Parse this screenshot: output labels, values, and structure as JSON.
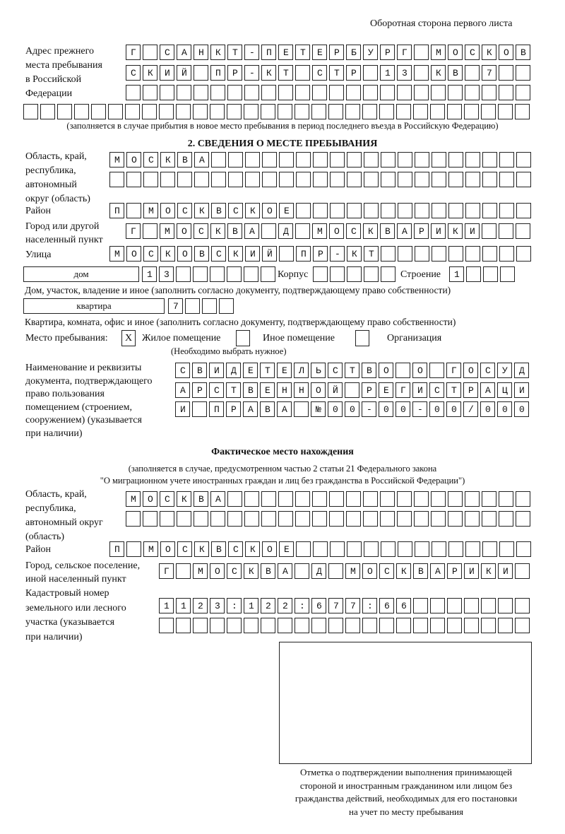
{
  "header": {
    "side_note": "Оборотная сторона первого листа"
  },
  "prev_address": {
    "label": [
      "Адрес прежнего",
      "места пребывания",
      "в Российской",
      "Федерации"
    ],
    "rows": [
      "Г САНКТ-ПЕТЕРБУРГ МОСКОВ",
      "СКИЙ ПР-КТ СТР 13 КВ 7",
      "",
      ""
    ],
    "note": "(заполняется в случае прибытия в новое место пребывания в период последнего въезда в Российскую Федерацию)"
  },
  "section2": {
    "title": "2. СВЕДЕНИЯ О МЕСТЕ ПРЕБЫВАНИЯ",
    "region_label": [
      "Область, край,",
      "республика,",
      "автономный",
      "округ (область)"
    ],
    "region_rows": [
      "МОСКВА",
      ""
    ],
    "district_label": "Район",
    "district": "П МОСКВСКОЕ",
    "city_label": [
      "Город или другой",
      "населенный пункт"
    ],
    "city": "Г МОСКВА Д МОСКВАРИКИ",
    "street_label": "Улица",
    "street": "МОСКОВСКИЙ ПР-КТ",
    "house_type": "дом",
    "house": "13",
    "korpus_label": "Корпус",
    "korpus": "",
    "building_label": "Строение",
    "building": "1",
    "house_note": "Дом, участок, владение и иное (заполнить согласно документу, подтверждающему право собственности)",
    "flat_type": "квартира",
    "flat": "7",
    "flat_note": "Квартира, комната, офис и иное (заполнить согласно документу, подтверждающему право собственности)",
    "stay_label": "Место пребывания:",
    "stay_options": [
      {
        "label": "Жилое помещение",
        "mark": "Х",
        "checked": true
      },
      {
        "label": "Иное помещение",
        "mark": "",
        "checked": false
      },
      {
        "label": "Организация",
        "mark": "",
        "checked": false
      }
    ],
    "stay_note": "(Необходимо выбрать нужное)",
    "doc_label": [
      "Наименование и реквизиты",
      "документа, подтверждающего",
      "право пользования",
      "помещением (строением,",
      "сооружением) (указывается",
      "при наличии)"
    ],
    "doc_rows": [
      "СВИДЕТЕЛЬСТВО О ГОСУД",
      "АРСТВЕННОЙ РЕГИСТРАЦИ",
      "И ПРАВА №00-00-00/000"
    ]
  },
  "actual": {
    "title": "Фактическое место нахождения",
    "note1": "(заполняется в случае, предусмотренном частью 2 статьи 21 Федерального закона",
    "note2": "\"О миграционном учете иностранных граждан и лиц без гражданства в Российской Федерации\")",
    "region_label": [
      "Область, край,",
      "республика,",
      "автономный округ",
      "(область)"
    ],
    "region_rows": [
      "МОСКВА",
      ""
    ],
    "district_label": "Район",
    "district": "П МОСКВСКОЕ",
    "city_label": [
      "Город, сельское поселение,",
      "иной населенный пункт"
    ],
    "city": "Г МОСКВА Д МОСКВАРИКИ",
    "cadastre_label": [
      "Кадастровый номер",
      "земельного или лесного",
      "участка (указывается",
      "при наличии)"
    ],
    "cadastre_rows": [
      "1123:122:677:66",
      ""
    ]
  },
  "stamp": {
    "caption": [
      "Отметка о подтверждении выполнения принимающей",
      "стороной и иностранным гражданином или лицом без",
      "гражданства действий, необходимых для его постановки",
      "на учет по месту пребывания"
    ]
  }
}
